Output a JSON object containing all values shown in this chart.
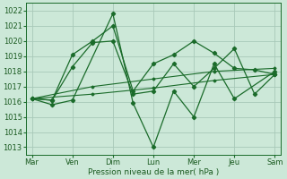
{
  "bg_color": "#cce8d8",
  "grid_color": "#a8c8b8",
  "line_color": "#1a6b2a",
  "tick_label_color": "#1a5a20",
  "xlabel": "Pression niveau de la mer( hPa )",
  "ylim": [
    1012.5,
    1022.5
  ],
  "yticks": [
    1013,
    1014,
    1015,
    1016,
    1017,
    1018,
    1019,
    1020,
    1021,
    1022
  ],
  "xlabels": [
    "Mar",
    "Ven",
    "Dim",
    "Lun",
    "Mer",
    "Jeu",
    "Sam"
  ],
  "day_x": [
    0,
    1,
    2,
    3,
    4,
    5,
    6
  ],
  "series1_x": [
    0,
    0.5,
    1.0,
    2.0,
    2.5,
    3.0,
    3.5,
    4.0,
    4.5,
    5.0,
    6.0
  ],
  "series1_y": [
    1016.2,
    1015.8,
    1016.1,
    1021.8,
    1015.9,
    1013.0,
    1016.7,
    1015.0,
    1018.5,
    1016.2,
    1018.0
  ],
  "series2_x": [
    0,
    0.5,
    1.0,
    1.5,
    2.0,
    2.5,
    3.0,
    3.5,
    4.0,
    4.5,
    5.0,
    5.5,
    6.0
  ],
  "series2_y": [
    1016.2,
    1016.1,
    1019.1,
    1020.0,
    1021.0,
    1016.7,
    1018.5,
    1019.1,
    1020.0,
    1019.2,
    1018.2,
    1018.1,
    1017.8
  ],
  "series3_x": [
    0,
    0.5,
    1.0,
    1.5,
    2.0,
    2.5,
    3.0,
    3.5,
    4.0,
    4.5,
    5.0,
    5.5,
    6.0
  ],
  "series3_y": [
    1016.2,
    1016.1,
    1018.3,
    1019.9,
    1020.0,
    1016.5,
    1016.7,
    1018.5,
    1017.0,
    1018.2,
    1019.5,
    1016.5,
    1017.8
  ],
  "series4_x": [
    0,
    1.5,
    3.0,
    4.5,
    6.0
  ],
  "series4_y": [
    1016.2,
    1016.5,
    1016.9,
    1017.4,
    1017.8
  ],
  "series5_x": [
    0,
    1.5,
    3.0,
    4.5,
    6.0
  ],
  "series5_y": [
    1016.2,
    1017.0,
    1017.5,
    1018.0,
    1018.2
  ]
}
